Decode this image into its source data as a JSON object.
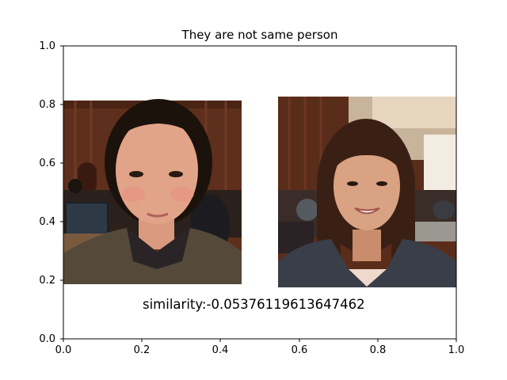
{
  "figure": {
    "title": "They are not same person",
    "xlim": [
      0,
      1
    ],
    "ylim": [
      0,
      1
    ],
    "x_ticks": [
      "0.0",
      "0.2",
      "0.4",
      "0.6",
      "0.8",
      "1.0"
    ],
    "y_ticks": [
      "0.0",
      "0.2",
      "0.4",
      "0.6",
      "0.8",
      "1.0"
    ],
    "grid": false
  },
  "chart_data": {
    "type": "image-comparison",
    "title": "They are not same person",
    "xlim": [
      0,
      1
    ],
    "ylim": [
      0,
      1
    ],
    "images": [
      {
        "content": "face photo of young woman with dark hair pulled back, indoor hall background",
        "extent": {
          "x": [
            0.0,
            0.455
          ],
          "y": [
            0.18,
            0.815
          ]
        }
      },
      {
        "content": "face photo of smiling young woman with long hair and bangs, indoor cafeteria background",
        "extent": {
          "x": [
            0.545,
            1.0
          ],
          "y": [
            0.17,
            0.825
          ]
        }
      }
    ],
    "annotation": {
      "text": "similarity:-0.05376119613647462",
      "x": 0.2,
      "y": 0.12
    }
  },
  "colors": {
    "axes": "#000000",
    "background": "#ffffff",
    "wall": "#5e2f1c",
    "skin": "#e2a488",
    "hair": "#1c120c"
  }
}
